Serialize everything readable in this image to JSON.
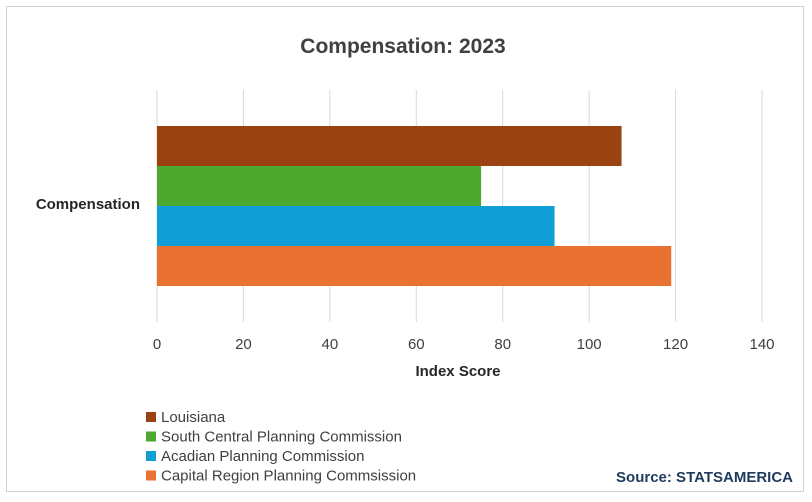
{
  "chart_data": {
    "type": "bar",
    "orientation": "horizontal",
    "title": "Compensation: 2023",
    "categories": [
      "Compensation"
    ],
    "series": [
      {
        "name": "Louisiana",
        "values": [
          107.5
        ],
        "color": "#9a4212"
      },
      {
        "name": "South Central Planning Commission",
        "values": [
          75
        ],
        "color": "#4ea72e"
      },
      {
        "name": "Acadian Planning Commission",
        "values": [
          92
        ],
        "color": "#0f9ed5"
      },
      {
        "name": "Capital Region Planning Commsission",
        "values": [
          119
        ],
        "color": "#e97132"
      }
    ],
    "xlabel": "Index Score",
    "ylabel": "",
    "xlim": [
      0,
      140
    ],
    "xticks": [
      0,
      20,
      40,
      60,
      80,
      100,
      120,
      140
    ],
    "grid": true,
    "legend": "bottom-left"
  },
  "source": "Source: STATSAMERICA"
}
